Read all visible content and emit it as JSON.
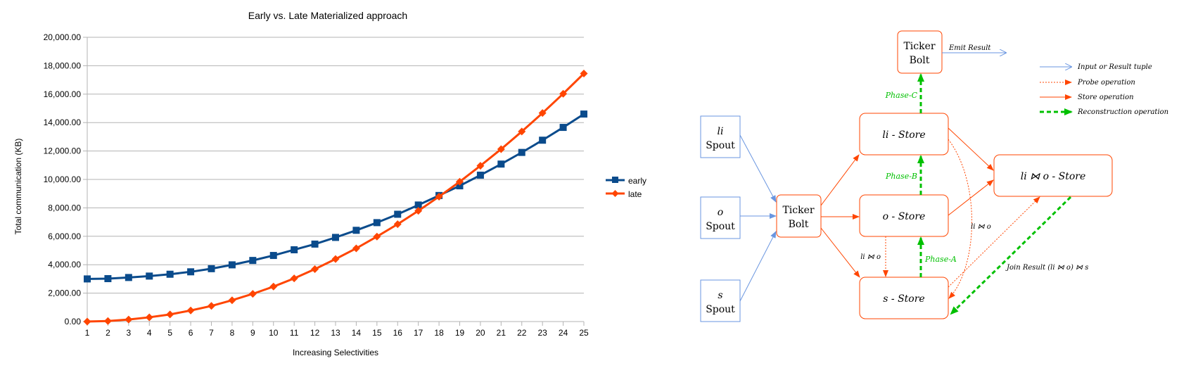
{
  "chart_data": {
    "type": "line",
    "title": "Early vs. Late Materialized approach",
    "xlabel": "Increasing Selectivities",
    "ylabel": "Total communication (KB)",
    "x": [
      1,
      2,
      3,
      4,
      5,
      6,
      7,
      8,
      9,
      10,
      11,
      12,
      13,
      14,
      15,
      16,
      17,
      18,
      19,
      20,
      21,
      22,
      23,
      24,
      25
    ],
    "ylim": [
      0,
      20000
    ],
    "yticks": [
      "0.00",
      "2,000.00",
      "4,000.00",
      "6,000.00",
      "8,000.00",
      "10,000.00",
      "12,000.00",
      "14,000.00",
      "16,000.00",
      "18,000.00",
      "20,000.00"
    ],
    "grid": true,
    "legend_position": "right",
    "series": [
      {
        "name": "early",
        "color": "#0a4b8c",
        "marker": "square",
        "values": [
          3000,
          3020,
          3100,
          3200,
          3330,
          3500,
          3720,
          3990,
          4300,
          4650,
          5050,
          5450,
          5920,
          6420,
          6960,
          7550,
          8200,
          8870,
          9550,
          10300,
          11080,
          11900,
          12760,
          13660,
          14600
        ]
      },
      {
        "name": "late",
        "color": "#ff4500",
        "marker": "diamond",
        "values": [
          0,
          40,
          140,
          300,
          500,
          780,
          1100,
          1500,
          1950,
          2460,
          3040,
          3690,
          4400,
          5150,
          5980,
          6850,
          7790,
          8790,
          9840,
          10960,
          12130,
          13370,
          14670,
          16030,
          17450
        ]
      }
    ]
  },
  "diagram": {
    "nodes": {
      "ticker_bolt_top": [
        "Ticker",
        "Bolt"
      ],
      "ticker_bolt_mid": [
        "Ticker",
        "Bolt"
      ],
      "li_spout": [
        "li",
        "Spout"
      ],
      "o_spout": [
        "o",
        "Spout"
      ],
      "s_spout": [
        "s",
        "Spout"
      ],
      "li_store": "li - Store",
      "o_store": "o - Store",
      "s_store": "s - Store",
      "lio_store": "li ⋈ o - Store"
    },
    "labels": {
      "emit_result": "Emit Result",
      "phase_c": "Phase-C",
      "phase_b": "Phase-B",
      "phase_a": "Phase-A",
      "li_join_o_left": "li ⋈ o",
      "li_join_o_right": "li ⋈ o",
      "join_result": "Join Result (li ⋈ o) ⋈ s"
    },
    "legend": [
      {
        "label": "Input or Result tuple",
        "color": "#6a96e0",
        "style": "solid-thin"
      },
      {
        "label": "Probe operation",
        "color": "#ff4500",
        "style": "dotted"
      },
      {
        "label": "Store operation",
        "color": "#ff4500",
        "style": "solid"
      },
      {
        "label": "Reconstruction operation",
        "color": "#00c000",
        "style": "dashed-thick"
      }
    ]
  }
}
